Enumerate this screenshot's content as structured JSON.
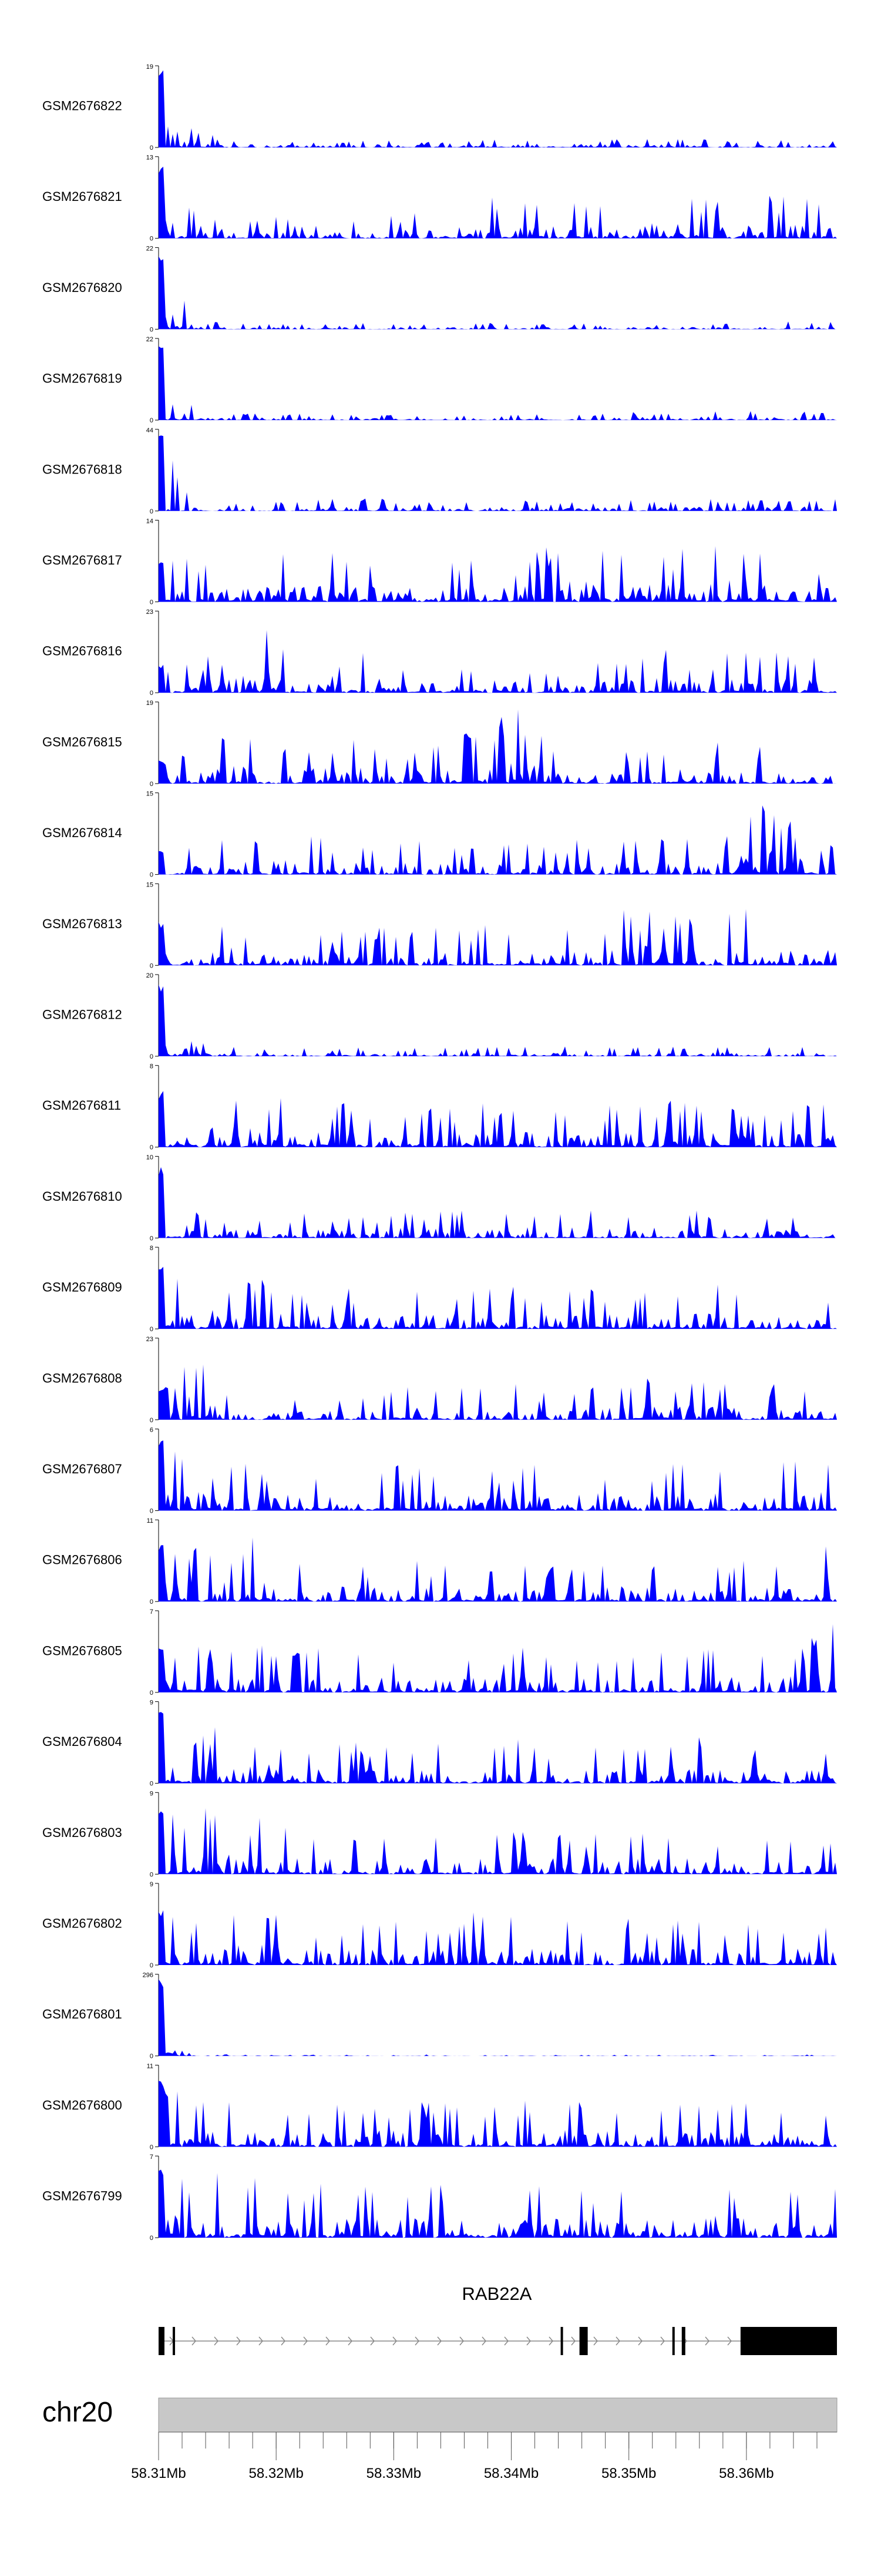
{
  "chart_data": {
    "type": "area",
    "title": "",
    "track_color": "#0000ff",
    "tracks": [
      {
        "name": "GSM2676822",
        "ymax": "19",
        "ymin": "0",
        "ylim": [
          0,
          19
        ],
        "peak_profile": [
          1.0,
          0.2,
          0.12,
          0.1,
          0.08,
          0.08,
          0.12,
          0.1,
          0.07,
          0.1,
          0.12,
          0.15,
          0.12,
          0.1,
          0.12,
          0.12,
          0.08,
          0.1,
          0.12,
          0.1
        ]
      },
      {
        "name": "GSM2676821",
        "ymax": "13",
        "ymin": "0",
        "ylim": [
          0,
          13
        ],
        "peak_profile": [
          0.9,
          0.5,
          0.3,
          0.3,
          0.2,
          0.25,
          0.3,
          0.35,
          0.45,
          0.5,
          0.6,
          0.65,
          0.4,
          0.6,
          0.7,
          0.5,
          0.45,
          0.55,
          0.5,
          0.45
        ]
      },
      {
        "name": "GSM2676820",
        "ymax": "22",
        "ymin": "0",
        "ylim": [
          0,
          22
        ],
        "peak_profile": [
          1.0,
          0.12,
          0.08,
          0.08,
          0.07,
          0.07,
          0.08,
          0.08,
          0.07,
          0.08,
          0.08,
          0.08,
          0.07,
          0.08,
          0.08,
          0.1,
          0.08,
          0.1,
          0.12,
          0.1
        ]
      },
      {
        "name": "GSM2676819",
        "ymax": "22",
        "ymin": "0",
        "ylim": [
          0,
          22
        ],
        "peak_profile": [
          1.0,
          0.12,
          0.08,
          0.1,
          0.08,
          0.07,
          0.08,
          0.07,
          0.07,
          0.08,
          0.07,
          0.1,
          0.08,
          0.1,
          0.12,
          0.15,
          0.12,
          0.12,
          0.12,
          0.1
        ]
      },
      {
        "name": "GSM2676818",
        "ymax": "44",
        "ymin": "0",
        "ylim": [
          0,
          44
        ],
        "peak_profile": [
          1.0,
          0.12,
          0.1,
          0.1,
          0.15,
          0.15,
          0.18,
          0.12,
          0.1,
          0.12,
          0.15,
          0.12,
          0.12,
          0.15,
          0.15,
          0.15,
          0.15,
          0.15,
          0.18,
          0.15
        ]
      },
      {
        "name": "GSM2676817",
        "ymax": "14",
        "ymin": "0",
        "ylim": [
          0,
          14
        ],
        "peak_profile": [
          0.5,
          0.55,
          0.5,
          0.6,
          0.65,
          0.6,
          0.7,
          0.65,
          0.55,
          0.6,
          0.55,
          0.7,
          0.85,
          0.7,
          0.6,
          0.7,
          0.8,
          0.95,
          0.6,
          0.55
        ]
      },
      {
        "name": "GSM2676816",
        "ymax": "23",
        "ymin": "0",
        "ylim": [
          0,
          23
        ],
        "peak_profile": [
          0.35,
          0.45,
          0.55,
          0.9,
          0.35,
          0.35,
          0.55,
          0.45,
          0.4,
          0.45,
          0.45,
          0.3,
          0.35,
          0.45,
          0.6,
          0.4,
          0.5,
          0.55,
          0.45,
          0.5
        ]
      },
      {
        "name": "GSM2676815",
        "ymax": "19",
        "ymin": "0",
        "ylim": [
          0,
          19
        ],
        "peak_profile": [
          0.3,
          0.45,
          0.75,
          0.45,
          0.55,
          0.65,
          0.55,
          0.45,
          0.6,
          0.8,
          1.0,
          0.45,
          0.35,
          0.4,
          0.45,
          0.55,
          0.5,
          0.45,
          0.3,
          0.3
        ]
      },
      {
        "name": "GSM2676814",
        "ymax": "15",
        "ymin": "0",
        "ylim": [
          0,
          15
        ],
        "peak_profile": [
          0.3,
          0.35,
          0.45,
          0.55,
          0.5,
          0.45,
          0.4,
          0.45,
          0.4,
          0.35,
          0.45,
          0.4,
          0.45,
          0.5,
          0.45,
          0.45,
          0.55,
          1.0,
          0.6,
          0.35
        ]
      },
      {
        "name": "GSM2676813",
        "ymax": "15",
        "ymin": "0",
        "ylim": [
          0,
          15
        ],
        "peak_profile": [
          0.55,
          0.55,
          0.65,
          0.45,
          0.4,
          0.5,
          0.45,
          0.55,
          0.5,
          0.5,
          0.6,
          0.55,
          0.6,
          0.7,
          0.7,
          0.8,
          0.95,
          0.6,
          0.55,
          0.55
        ]
      },
      {
        "name": "GSM2676812",
        "ymax": "20",
        "ymin": "0",
        "ylim": [
          0,
          20
        ],
        "peak_profile": [
          0.9,
          0.18,
          0.15,
          0.12,
          0.1,
          0.12,
          0.12,
          0.1,
          0.12,
          0.12,
          0.12,
          0.15,
          0.12,
          0.12,
          0.12,
          0.12,
          0.15,
          0.12,
          0.12,
          0.12
        ]
      },
      {
        "name": "GSM2676811",
        "ymax": "8",
        "ymin": "0",
        "ylim": [
          0,
          8
        ],
        "peak_profile": [
          0.7,
          0.9,
          0.75,
          0.65,
          0.55,
          0.6,
          0.55,
          0.5,
          0.5,
          0.55,
          0.55,
          0.6,
          0.55,
          0.55,
          0.6,
          0.55,
          0.5,
          0.55,
          0.55,
          0.6
        ]
      },
      {
        "name": "GSM2676810",
        "ymax": "10",
        "ymin": "0",
        "ylim": [
          0,
          10
        ],
        "peak_profile": [
          0.9,
          0.35,
          0.3,
          0.3,
          0.3,
          0.35,
          0.3,
          0.4,
          0.35,
          0.35,
          0.4,
          0.35,
          0.4,
          0.35,
          0.4,
          0.35,
          0.4,
          0.35,
          0.3,
          0.35
        ]
      },
      {
        "name": "GSM2676809",
        "ymax": "8",
        "ymin": "0",
        "ylim": [
          0,
          8
        ],
        "peak_profile": [
          0.85,
          0.7,
          0.75,
          0.65,
          0.5,
          0.5,
          0.55,
          0.55,
          0.6,
          0.55,
          0.55,
          0.5,
          0.55,
          0.55,
          0.5,
          0.55,
          0.55,
          0.5,
          0.5,
          0.5
        ]
      },
      {
        "name": "GSM2676808",
        "ymax": "23",
        "ymin": "0",
        "ylim": [
          0,
          23
        ],
        "peak_profile": [
          0.4,
          0.95,
          0.3,
          0.25,
          0.3,
          0.35,
          0.45,
          0.45,
          0.4,
          0.45,
          0.45,
          0.35,
          0.4,
          0.45,
          0.6,
          0.55,
          0.5,
          0.45,
          0.45,
          0.3
        ]
      },
      {
        "name": "GSM2676807",
        "ymax": "6",
        "ymin": "0",
        "ylim": [
          0,
          6
        ],
        "peak_profile": [
          0.9,
          0.7,
          0.65,
          0.6,
          0.55,
          0.7,
          0.6,
          0.6,
          0.6,
          0.55,
          0.55,
          0.6,
          0.65,
          0.6,
          0.6,
          0.65,
          0.6,
          0.6,
          0.8,
          0.6
        ]
      },
      {
        "name": "GSM2676806",
        "ymax": "11",
        "ymin": "0",
        "ylim": [
          0,
          11
        ],
        "peak_profile": [
          0.7,
          0.75,
          0.7,
          0.85,
          0.5,
          0.55,
          0.5,
          0.55,
          0.5,
          0.5,
          0.5,
          0.45,
          0.5,
          0.55,
          0.5,
          0.6,
          0.5,
          0.55,
          0.5,
          0.95
        ]
      },
      {
        "name": "GSM2676805",
        "ymax": "7",
        "ymin": "0",
        "ylim": [
          0,
          7
        ],
        "peak_profile": [
          0.6,
          0.6,
          0.55,
          0.6,
          0.55,
          0.55,
          0.55,
          0.6,
          0.55,
          0.55,
          0.6,
          0.55,
          0.6,
          0.55,
          0.55,
          0.6,
          0.55,
          0.55,
          0.6,
          1.0
        ]
      },
      {
        "name": "GSM2676804",
        "ymax": "9",
        "ymin": "0",
        "ylim": [
          0,
          9
        ],
        "peak_profile": [
          0.95,
          0.75,
          0.7,
          0.7,
          0.5,
          0.5,
          0.55,
          0.5,
          0.55,
          0.55,
          0.55,
          0.5,
          0.55,
          0.5,
          0.55,
          0.6,
          0.5,
          0.55,
          0.5,
          0.45
        ]
      },
      {
        "name": "GSM2676803",
        "ymax": "9",
        "ymin": "0",
        "ylim": [
          0,
          9
        ],
        "peak_profile": [
          0.8,
          0.9,
          0.8,
          0.7,
          0.55,
          0.6,
          0.55,
          0.55,
          0.55,
          0.6,
          0.55,
          0.6,
          0.55,
          0.6,
          0.55,
          0.6,
          0.55,
          0.55,
          0.6,
          0.55
        ]
      },
      {
        "name": "GSM2676802",
        "ymax": "9",
        "ymin": "0",
        "ylim": [
          0,
          9
        ],
        "peak_profile": [
          0.7,
          0.6,
          0.65,
          0.9,
          0.55,
          0.55,
          0.6,
          0.6,
          0.55,
          0.8,
          0.6,
          0.55,
          0.55,
          0.6,
          0.55,
          0.6,
          0.5,
          0.55,
          0.6,
          0.65
        ]
      },
      {
        "name": "GSM2676801",
        "ymax": "296",
        "ymin": "0",
        "ylim": [
          0,
          296
        ],
        "peak_profile": [
          1.0,
          0.02,
          0.02,
          0.015,
          0.015,
          0.015,
          0.015,
          0.02,
          0.02,
          0.015,
          0.015,
          0.015,
          0.015,
          0.015,
          0.015,
          0.015,
          0.015,
          0.015,
          0.02,
          0.015
        ]
      },
      {
        "name": "GSM2676800",
        "ymax": "11",
        "ymin": "0",
        "ylim": [
          0,
          11
        ],
        "peak_profile": [
          0.85,
          0.8,
          0.6,
          0.5,
          0.5,
          0.55,
          0.65,
          0.55,
          0.6,
          0.55,
          0.6,
          0.7,
          0.55,
          0.6,
          0.55,
          0.6,
          0.55,
          0.55,
          0.5,
          0.6
        ]
      },
      {
        "name": "GSM2676799",
        "ymax": "7",
        "ymin": "0",
        "ylim": [
          0,
          7
        ],
        "peak_profile": [
          0.85,
          0.95,
          0.9,
          0.7,
          0.65,
          0.7,
          0.7,
          0.75,
          0.65,
          0.7,
          0.65,
          0.7,
          0.65,
          0.6,
          0.65,
          0.9,
          0.75,
          0.7,
          0.6,
          0.85
        ]
      }
    ],
    "gene": {
      "name": "RAB22A",
      "strand": "+",
      "exons_mb": [
        [
          58.31,
          58.3105
        ],
        [
          58.3112,
          58.3114
        ],
        [
          58.3442,
          58.3444
        ],
        [
          58.3458,
          58.3465
        ],
        [
          58.3537,
          58.3539
        ],
        [
          58.3545,
          58.3548
        ],
        [
          58.3595,
          58.3677
        ]
      ]
    },
    "chromosome": "chr20",
    "xlim_mb": [
      58.31,
      58.3677
    ],
    "x_ticks_mb": [
      58.31,
      58.32,
      58.33,
      58.34,
      58.35,
      58.36
    ],
    "x_tick_labels": [
      "58.31Mb",
      "58.32Mb",
      "58.33Mb",
      "58.34Mb",
      "58.35Mb",
      "58.36Mb"
    ],
    "minor_tick_step_mb": 0.002,
    "ideogram_color": "#c8c8c8"
  }
}
